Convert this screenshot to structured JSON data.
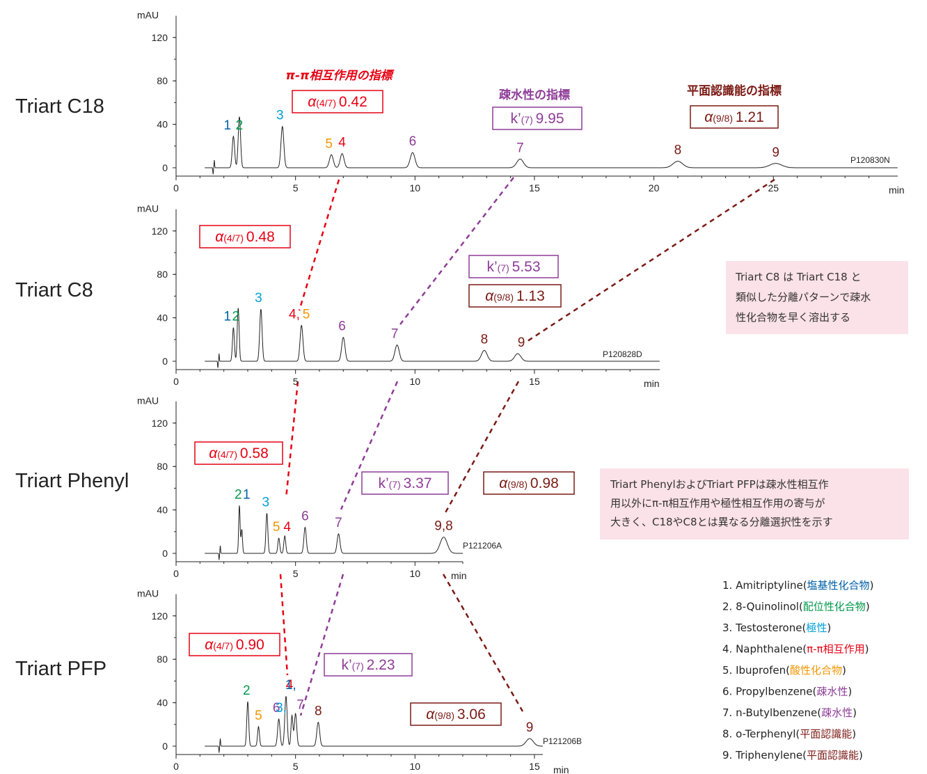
{
  "colors": {
    "red": "#e60012",
    "purple": "#8e3c98",
    "brown": "#7a1a14",
    "blue": "#0060a8",
    "green": "#00994c",
    "cyan": "#00a0d8",
    "orange": "#f29600",
    "violet": "#8e3c98",
    "pinkbox": "#fbe1e8"
  },
  "metric_titles": {
    "pipi": "π-π相互作用の指標",
    "hydro": "疎水性の指標",
    "planar": "平面認識能の指標"
  },
  "metric_labels": {
    "alpha47_sub": "(4/7)",
    "alpha98_sub": "(9/8)",
    "k7_sub": "(7)",
    "alpha_symbol": "α",
    "k_symbol": "k’"
  },
  "notes": [
    [
      "Triart C8 は Triart C18 と",
      "類似した分離パターンで疎水",
      "性化合物を早く溶出する"
    ],
    [
      "Triart PhenylおよびTriart PFPは疎水性相互作",
      "用以外にπ-π相互作用や極性相互作用の寄与が",
      "大きく、C18やC8とは異なる分離選択性を示す"
    ]
  ],
  "compound_legend": [
    {
      "prefix": "1. Amitriptyline",
      "paren": "塩基性化合物",
      "color": "#0060a8"
    },
    {
      "prefix": "2. 8-Quinolinol",
      "paren": "配位性化合物",
      "color": "#00994c"
    },
    {
      "prefix": "3. Testosterone",
      "paren": "極性",
      "color": "#00a0d8"
    },
    {
      "prefix": "4. Naphthalene",
      "paren": "π-π相互作用",
      "color": "#e60012"
    },
    {
      "prefix": "5. Ibuprofen",
      "paren": "酸性化合物",
      "color": "#f29600"
    },
    {
      "prefix": "6. Propylbenzene",
      "paren": "疎水性",
      "color": "#8e3c98"
    },
    {
      "prefix": "7. n-Butylbenzene",
      "paren": "疎水性",
      "color": "#8e3c98"
    },
    {
      "prefix": "8. o-Terphenyl",
      "paren": "平面認識能",
      "color": "#7a1a14"
    },
    {
      "prefix": "9. Triphenylene",
      "paren": "平面認識能",
      "color": "#7a1a14"
    }
  ],
  "chart_data": [
    {
      "type": "line",
      "title": "Triart C18",
      "code": "P120830N",
      "ylabel": "mAU",
      "xlabel": "min",
      "xlim": [
        0,
        30
      ],
      "ylim": [
        -8,
        140
      ],
      "xticks": [
        0,
        5,
        10,
        15,
        20,
        25
      ],
      "yticks": [
        0,
        40,
        80,
        120
      ],
      "alpha47": "0.42",
      "k7": "9.95",
      "alpha98": "1.21",
      "peaks": [
        {
          "label": "1",
          "t": 2.4,
          "h": 29,
          "w": 0.05
        },
        {
          "label": "2",
          "t": 2.65,
          "h": 47,
          "w": 0.05
        },
        {
          "label": "3",
          "t": 4.45,
          "h": 38,
          "w": 0.06
        },
        {
          "label": "5",
          "t": 6.5,
          "h": 12,
          "w": 0.08
        },
        {
          "label": "4",
          "t": 6.95,
          "h": 13,
          "w": 0.08
        },
        {
          "label": "6",
          "t": 9.9,
          "h": 14,
          "w": 0.1
        },
        {
          "label": "7",
          "t": 14.4,
          "h": 8,
          "w": 0.14
        },
        {
          "label": "8",
          "t": 21.0,
          "h": 6,
          "w": 0.2
        },
        {
          "label": "9",
          "t": 25.1,
          "h": 4,
          "w": 0.25
        }
      ],
      "peak_labels": [
        {
          "text": "1",
          "t": 2.15,
          "color": "blue"
        },
        {
          "text": "2",
          "t": 2.65,
          "color": "green"
        },
        {
          "text": "3",
          "t": 4.35,
          "color": "cyan"
        },
        {
          "text": "5",
          "t": 6.4,
          "color": "orange"
        },
        {
          "text": "4",
          "t": 6.95,
          "color": "red"
        },
        {
          "text": "6",
          "t": 9.9,
          "color": "violet"
        },
        {
          "text": "7",
          "t": 14.4,
          "color": "violet"
        },
        {
          "text": "8",
          "t": 21.0,
          "color": "brown"
        },
        {
          "text": "9",
          "t": 25.1,
          "color": "brown"
        }
      ]
    },
    {
      "type": "line",
      "title": "Triart C8",
      "code": "P120828D",
      "ylabel": "mAU",
      "xlabel": "min",
      "xlim": [
        0,
        20
      ],
      "ylim": [
        -8,
        140
      ],
      "xticks": [
        0,
        5,
        10,
        15
      ],
      "yticks": [
        0,
        40,
        80,
        120
      ],
      "alpha47": "0.48",
      "k7": "5.53",
      "alpha98": "1.13",
      "peaks": [
        {
          "label": "1",
          "t": 2.4,
          "h": 31,
          "w": 0.04
        },
        {
          "label": "2",
          "t": 2.6,
          "h": 49,
          "w": 0.04
        },
        {
          "label": "3",
          "t": 3.55,
          "h": 48,
          "w": 0.05
        },
        {
          "label": "4,5",
          "t": 5.25,
          "h": 33,
          "w": 0.06
        },
        {
          "label": "6",
          "t": 7.0,
          "h": 22,
          "w": 0.07
        },
        {
          "label": "7",
          "t": 9.25,
          "h": 15,
          "w": 0.09
        },
        {
          "label": "8",
          "t": 12.9,
          "h": 10,
          "w": 0.12
        },
        {
          "label": "9",
          "t": 14.3,
          "h": 7,
          "w": 0.13
        }
      ],
      "peak_labels": [
        {
          "text": "1",
          "t": 2.15,
          "color": "blue"
        },
        {
          "text": "2",
          "t": 2.5,
          "color": "green"
        },
        {
          "text": "3",
          "t": 3.45,
          "color": "cyan"
        },
        {
          "text": "4,",
          "t": 4.95,
          "color": "red"
        },
        {
          "text": "5",
          "t": 5.45,
          "color": "orange"
        },
        {
          "text": "6",
          "t": 6.95,
          "color": "violet"
        },
        {
          "text": "7",
          "t": 9.15,
          "color": "violet"
        },
        {
          "text": "8",
          "t": 12.9,
          "color": "brown"
        },
        {
          "text": "9",
          "t": 14.45,
          "color": "brown"
        }
      ]
    },
    {
      "type": "line",
      "title": "Triart Phenyl",
      "code": "P121206A",
      "ylabel": "mAU",
      "xlabel": "min",
      "xlim": [
        0,
        12
      ],
      "ylim": [
        -8,
        140
      ],
      "xticks": [
        0,
        5,
        10
      ],
      "yticks": [
        0,
        40,
        80,
        120
      ],
      "alpha47": "0.58",
      "k7": "3.37",
      "alpha98": "0.98",
      "peaks": [
        {
          "label": "2",
          "t": 2.65,
          "h": 44,
          "w": 0.03
        },
        {
          "label": "1",
          "t": 2.75,
          "h": 22,
          "w": 0.03
        },
        {
          "label": "3",
          "t": 3.8,
          "h": 37,
          "w": 0.04
        },
        {
          "label": "5",
          "t": 4.3,
          "h": 14,
          "w": 0.04
        },
        {
          "label": "4",
          "t": 4.55,
          "h": 16,
          "w": 0.04
        },
        {
          "label": "6",
          "t": 5.4,
          "h": 24,
          "w": 0.05
        },
        {
          "label": "7",
          "t": 6.8,
          "h": 18,
          "w": 0.06
        },
        {
          "label": "9,8",
          "t": 11.2,
          "h": 15,
          "w": 0.15
        }
      ],
      "peak_labels": [
        {
          "text": "2",
          "t": 2.6,
          "color": "green"
        },
        {
          "text": "1",
          "t": 2.95,
          "color": "blue"
        },
        {
          "text": "3",
          "t": 3.75,
          "color": "cyan"
        },
        {
          "text": "5",
          "t": 4.2,
          "color": "orange"
        },
        {
          "text": "4",
          "t": 4.65,
          "color": "red"
        },
        {
          "text": "6",
          "t": 5.4,
          "color": "violet"
        },
        {
          "text": "7",
          "t": 6.8,
          "color": "violet"
        },
        {
          "text": "9,8",
          "t": 11.2,
          "color": "brown"
        }
      ]
    },
    {
      "type": "line",
      "title": "Triart PFP",
      "code": "P121206B",
      "ylabel": "mAU",
      "xlabel": "min",
      "xlim": [
        0,
        16
      ],
      "ylim": [
        -8,
        140
      ],
      "xticks": [
        0,
        5,
        10,
        15
      ],
      "yticks": [
        0,
        40,
        80,
        120
      ],
      "alpha47": "0.90",
      "k7": "2.23",
      "alpha98": "3.06",
      "peaks": [
        {
          "label": "2",
          "t": 3.0,
          "h": 41,
          "w": 0.04
        },
        {
          "label": "5",
          "t": 3.45,
          "h": 18,
          "w": 0.04
        },
        {
          "label": "6",
          "t": 4.3,
          "h": 25,
          "w": 0.05
        },
        {
          "label": "3,4",
          "t": 4.6,
          "h": 46,
          "w": 0.05
        },
        {
          "label": "1",
          "t": 4.85,
          "h": 28,
          "w": 0.04
        },
        {
          "label": "7",
          "t": 5.0,
          "h": 30,
          "w": 0.05
        },
        {
          "label": "8",
          "t": 5.95,
          "h": 22,
          "w": 0.06
        },
        {
          "label": "9",
          "t": 14.8,
          "h": 7,
          "w": 0.15
        }
      ],
      "peak_labels": [
        {
          "text": "2",
          "t": 2.95,
          "color": "green"
        },
        {
          "text": "5",
          "t": 3.45,
          "color": "orange"
        },
        {
          "text": "6",
          "t": 4.2,
          "color": "violet"
        },
        {
          "text": "3,",
          "t": 4.4,
          "color": "cyan"
        },
        {
          "text": "4",
          "t": 4.75,
          "color": "red"
        },
        {
          "text": "1,",
          "t": 4.8,
          "color": "blue"
        },
        {
          "text": "7",
          "t": 5.2,
          "color": "violet"
        },
        {
          "text": "8",
          "t": 5.95,
          "color": "brown"
        },
        {
          "text": "9",
          "t": 14.8,
          "color": "brown"
        }
      ]
    }
  ]
}
